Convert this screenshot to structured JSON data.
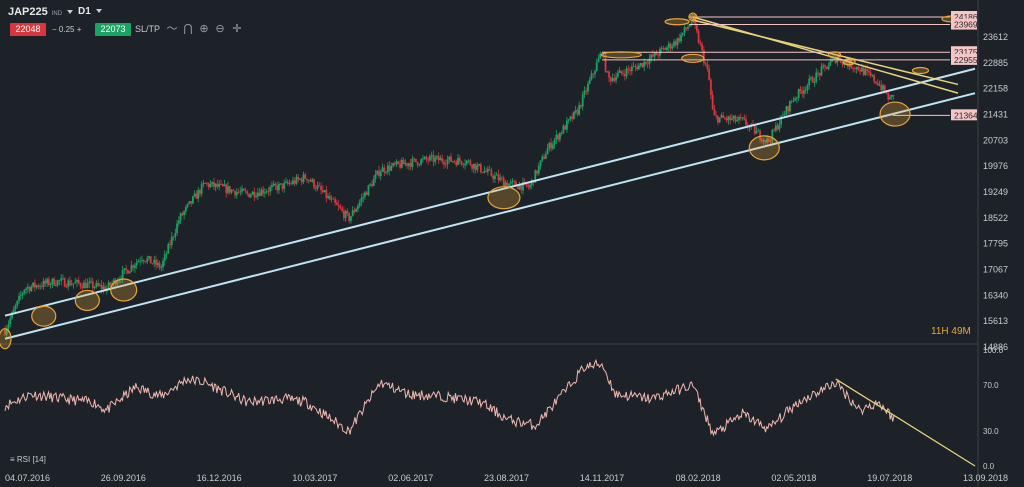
{
  "header": {
    "symbol": "JAP225",
    "instrument_tag": "IND",
    "timeframe": "D1",
    "bid": "22048",
    "spread_minus": "−",
    "spread": "0.25",
    "spread_plus": "+",
    "ask": "22073",
    "sltp_label": "SL/TP",
    "tools": [
      "line-chart-icon",
      "magnet-icon",
      "zoom-in-icon",
      "zoom-out-icon",
      "crosshair-icon"
    ]
  },
  "timer": "11H 49M",
  "colors": {
    "background": "#1d2228",
    "bull": "#19a463",
    "bear": "#d9363e",
    "channel": "#bfe4f5",
    "trend": "#e6d37a",
    "highlight": "#e8a53a",
    "price_tag": "#f6c6c6",
    "rsi_line": "#f2b8b0"
  },
  "chart_data": [
    {
      "type": "candlestick",
      "instrument": "JAP225",
      "timeframe": "D1",
      "x_range": [
        "2016-07-04",
        "2018-09-13"
      ],
      "x_tick_labels": [
        "04.07.2016",
        "26.09.2016",
        "16.12.2016",
        "10.03.2017",
        "02.06.2017",
        "23.08.2017",
        "14.11.2017",
        "08.02.2018",
        "02.05.2018",
        "19.07.2018",
        "13.09.2018"
      ],
      "y_tick_labels": [
        "23612",
        "22885",
        "22158",
        "21431",
        "20703",
        "19976",
        "19249",
        "18522",
        "17795",
        "17067",
        "16340",
        "15613",
        "14886"
      ],
      "ylim": [
        14886,
        24186
      ],
      "price_tags": [
        "24186",
        "23969",
        "23175",
        "22955",
        "21364"
      ],
      "approx_close_path": [
        [
          "2016-07-04",
          15200
        ],
        [
          "2016-07-20",
          16400
        ],
        [
          "2016-08-15",
          16600
        ],
        [
          "2016-09-10",
          16500
        ],
        [
          "2016-09-26",
          16400
        ],
        [
          "2016-10-25",
          17300
        ],
        [
          "2016-11-10",
          17000
        ],
        [
          "2016-11-25",
          18400
        ],
        [
          "2016-12-16",
          19400
        ],
        [
          "2017-01-20",
          19100
        ],
        [
          "2017-02-20",
          19350
        ],
        [
          "2017-03-10",
          19600
        ],
        [
          "2017-04-14",
          18400
        ],
        [
          "2017-05-10",
          19800
        ],
        [
          "2017-06-02",
          20000
        ],
        [
          "2017-06-20",
          20100
        ],
        [
          "2017-07-20",
          20050
        ],
        [
          "2017-08-23",
          19400
        ],
        [
          "2017-09-10",
          19300
        ],
        [
          "2017-09-25",
          20400
        ],
        [
          "2017-10-20",
          21500
        ],
        [
          "2017-11-09",
          23200
        ],
        [
          "2017-11-14",
          22400
        ],
        [
          "2017-12-10",
          22800
        ],
        [
          "2018-01-10",
          23500
        ],
        [
          "2018-01-23",
          24100
        ],
        [
          "2018-02-05",
          22500
        ],
        [
          "2018-02-09",
          21300
        ],
        [
          "2018-03-05",
          21200
        ],
        [
          "2018-03-26",
          20600
        ],
        [
          "2018-04-15",
          21800
        ],
        [
          "2018-05-02",
          22400
        ],
        [
          "2018-05-21",
          23000
        ],
        [
          "2018-06-10",
          22700
        ],
        [
          "2018-06-25",
          22300
        ],
        [
          "2018-07-05",
          21800
        ],
        [
          "2018-07-09",
          22048
        ]
      ],
      "annotations": {
        "channel_lines": [
          [
            [
              "2016-07-04",
              15613
            ],
            [
              "2018-09-13",
              22700
            ]
          ],
          [
            [
              "2016-07-04",
              14950
            ],
            [
              "2018-09-13",
              22000
            ]
          ]
        ],
        "trend_lines": [
          [
            [
              "2018-01-23",
              24186
            ],
            [
              "2018-08-30",
              22000
            ]
          ],
          [
            [
              "2018-01-23",
              24100
            ],
            [
              "2018-08-30",
              22250
            ]
          ]
        ],
        "horizontal_levels": [
          24186,
          23969,
          23175,
          22955,
          21364
        ]
      }
    },
    {
      "type": "line",
      "name": "RSI [14]",
      "x_range": [
        "2016-07-04",
        "2018-09-13"
      ],
      "ylim": [
        0,
        100
      ],
      "y_tick_labels": [
        "100.0",
        "70.0",
        "30.0",
        "0.0"
      ],
      "approx_values": [
        [
          "2016-07-04",
          52
        ],
        [
          "2016-07-25",
          62
        ],
        [
          "2016-08-20",
          58
        ],
        [
          "2016-09-15",
          55
        ],
        [
          "2016-09-26",
          48
        ],
        [
          "2016-10-20",
          68
        ],
        [
          "2016-11-10",
          60
        ],
        [
          "2016-12-01",
          75
        ],
        [
          "2016-12-16",
          72
        ],
        [
          "2017-01-20",
          55
        ],
        [
          "2017-02-20",
          58
        ],
        [
          "2017-03-10",
          55
        ],
        [
          "2017-04-14",
          30
        ],
        [
          "2017-05-10",
          72
        ],
        [
          "2017-06-02",
          62
        ],
        [
          "2017-07-01",
          60
        ],
        [
          "2017-08-01",
          55
        ],
        [
          "2017-08-23",
          40
        ],
        [
          "2017-09-15",
          35
        ],
        [
          "2017-10-10",
          65
        ],
        [
          "2017-10-25",
          85
        ],
        [
          "2017-11-09",
          88
        ],
        [
          "2017-11-20",
          62
        ],
        [
          "2017-12-20",
          58
        ],
        [
          "2018-01-23",
          70
        ],
        [
          "2018-02-09",
          27
        ],
        [
          "2018-03-05",
          45
        ],
        [
          "2018-03-26",
          32
        ],
        [
          "2018-04-20",
          55
        ],
        [
          "2018-05-21",
          72
        ],
        [
          "2018-06-10",
          48
        ],
        [
          "2018-06-25",
          55
        ],
        [
          "2018-07-09",
          40
        ]
      ],
      "annotations": {
        "trend_line": [
          [
            "2018-05-21",
            75
          ],
          [
            "2018-09-13",
            0
          ]
        ]
      }
    }
  ],
  "rsi_label": "RSI [14]"
}
